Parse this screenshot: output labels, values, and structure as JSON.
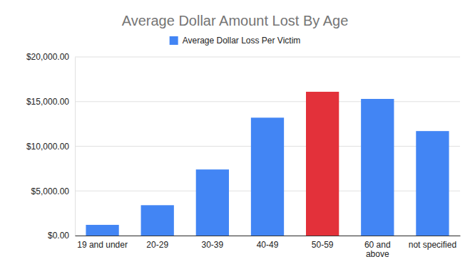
{
  "chart_data": {
    "type": "bar",
    "title": "Average Dollar Amount Lost By Age",
    "categories": [
      "19 and under",
      "20-29",
      "30-39",
      "40-49",
      "50-59",
      "60 and above",
      "not specified"
    ],
    "series": [
      {
        "name": "Average Dollar Loss Per Victim",
        "color": "#4285f4",
        "colors": [
          "#4285f4",
          "#4285f4",
          "#4285f4",
          "#4285f4",
          "#e3313a",
          "#4285f4",
          "#4285f4"
        ],
        "values": [
          1200,
          3400,
          7400,
          13200,
          16100,
          15300,
          11700
        ]
      }
    ],
    "ylim": [
      0,
      20000
    ],
    "yticks": [
      {
        "value": 0,
        "label": "$0.00"
      },
      {
        "value": 5000,
        "label": "$5,000.00"
      },
      {
        "value": 10000,
        "label": "$10,000.00"
      },
      {
        "value": 15000,
        "label": "$15,000.00"
      },
      {
        "value": 20000,
        "label": "$20,000.00"
      }
    ],
    "grid": true,
    "legend": "top"
  }
}
